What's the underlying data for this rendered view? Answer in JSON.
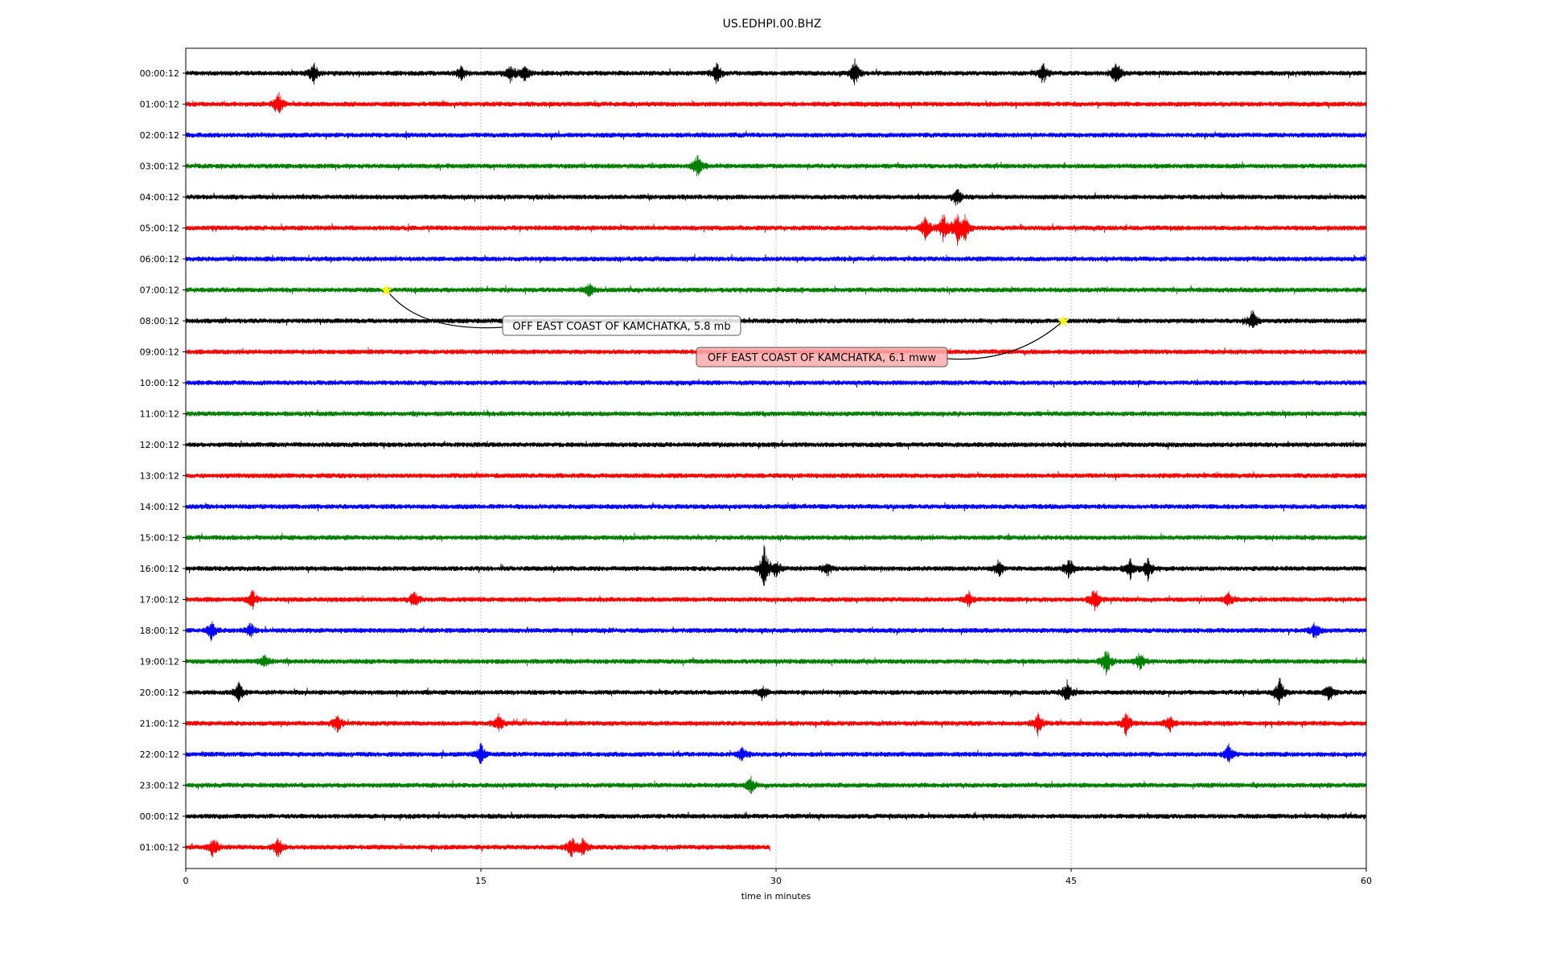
{
  "chart_data": {
    "type": "line",
    "title": "US.EDHPI.00.BHZ",
    "xlabel": "time in minutes",
    "ylabel": "",
    "xlim": [
      0,
      60
    ],
    "xticks": [
      0,
      15,
      30,
      45,
      60
    ],
    "xtick_labels": [
      "0",
      "15",
      "30",
      "45",
      "60"
    ],
    "grid": "vertical dotted at 15, 30, 45",
    "colors": [
      "#000000",
      "#ff0000",
      "#0000ff",
      "#008000"
    ],
    "trace_labels": [
      "00:00:12",
      "01:00:12",
      "02:00:12",
      "03:00:12",
      "04:00:12",
      "05:00:12",
      "06:00:12",
      "07:00:12",
      "08:00:12",
      "09:00:12",
      "10:00:12",
      "11:00:12",
      "12:00:12",
      "13:00:12",
      "14:00:12",
      "15:00:12",
      "16:00:12",
      "17:00:12",
      "18:00:12",
      "19:00:12",
      "20:00:12",
      "21:00:12",
      "22:00:12",
      "23:00:12",
      "00:00:12",
      "01:00:12"
    ],
    "last_trace_end_minute": 29.7,
    "events": [
      [
        0,
        6.5,
        3
      ],
      [
        0,
        14,
        2
      ],
      [
        0,
        16.5,
        2.5
      ],
      [
        0,
        17.2,
        2.5
      ],
      [
        0,
        27,
        3
      ],
      [
        0,
        34,
        3.5
      ],
      [
        0,
        43.6,
        2.5
      ],
      [
        0,
        47.3,
        3.5
      ],
      [
        1,
        4.7,
        3.5
      ],
      [
        3,
        26,
        3
      ],
      [
        4,
        39.2,
        2.5
      ],
      [
        5,
        37.6,
        3.5
      ],
      [
        5,
        38.5,
        4
      ],
      [
        5,
        39.2,
        5
      ],
      [
        5,
        39.6,
        3
      ],
      [
        7,
        20.5,
        2
      ],
      [
        8,
        54.2,
        3
      ],
      [
        16,
        29.4,
        6.5
      ],
      [
        16,
        30,
        2.5
      ],
      [
        16,
        32.6,
        2
      ],
      [
        16,
        41.3,
        2.5
      ],
      [
        16,
        44.9,
        3
      ],
      [
        16,
        48,
        3
      ],
      [
        16,
        48.9,
        3
      ],
      [
        17,
        3.4,
        2.5
      ],
      [
        17,
        11.6,
        2.5
      ],
      [
        17,
        46.2,
        3.5
      ],
      [
        17,
        39.8,
        2
      ],
      [
        17,
        53,
        2
      ],
      [
        18,
        1.3,
        2.5
      ],
      [
        18,
        3.3,
        2
      ],
      [
        18,
        57.4,
        2.5
      ],
      [
        19,
        4,
        2
      ],
      [
        19,
        46.8,
        4
      ],
      [
        19,
        48.5,
        2.5
      ],
      [
        20,
        2.7,
        2.5
      ],
      [
        20,
        29.3,
        2
      ],
      [
        20,
        44.8,
        3
      ],
      [
        20,
        55.6,
        4
      ],
      [
        20,
        58.1,
        2.5
      ],
      [
        21,
        7.7,
        2.5
      ],
      [
        21,
        15.9,
        2.5
      ],
      [
        21,
        43.3,
        3
      ],
      [
        21,
        47.8,
        3.5
      ],
      [
        21,
        50,
        2.5
      ],
      [
        22,
        15,
        3
      ],
      [
        22,
        28.3,
        2
      ],
      [
        22,
        53,
        2.5
      ],
      [
        23,
        28.7,
        2.5
      ],
      [
        25,
        1.4,
        3
      ],
      [
        25,
        4.7,
        3
      ],
      [
        25,
        19.6,
        3
      ],
      [
        25,
        20.2,
        2.5
      ]
    ],
    "annotations": [
      {
        "text": "OFF EAST COAST OF KAMCHATKA, 5.8 mb",
        "trace": 7,
        "minute": 10.2
      },
      {
        "text": "OFF EAST COAST OF KAMCHATKA, 6.1 mww",
        "trace": 8,
        "minute": 44.6
      }
    ],
    "marker_color": "#ffff00",
    "annotation_colors": [
      "#ffffff",
      "#ffaaaa"
    ]
  }
}
